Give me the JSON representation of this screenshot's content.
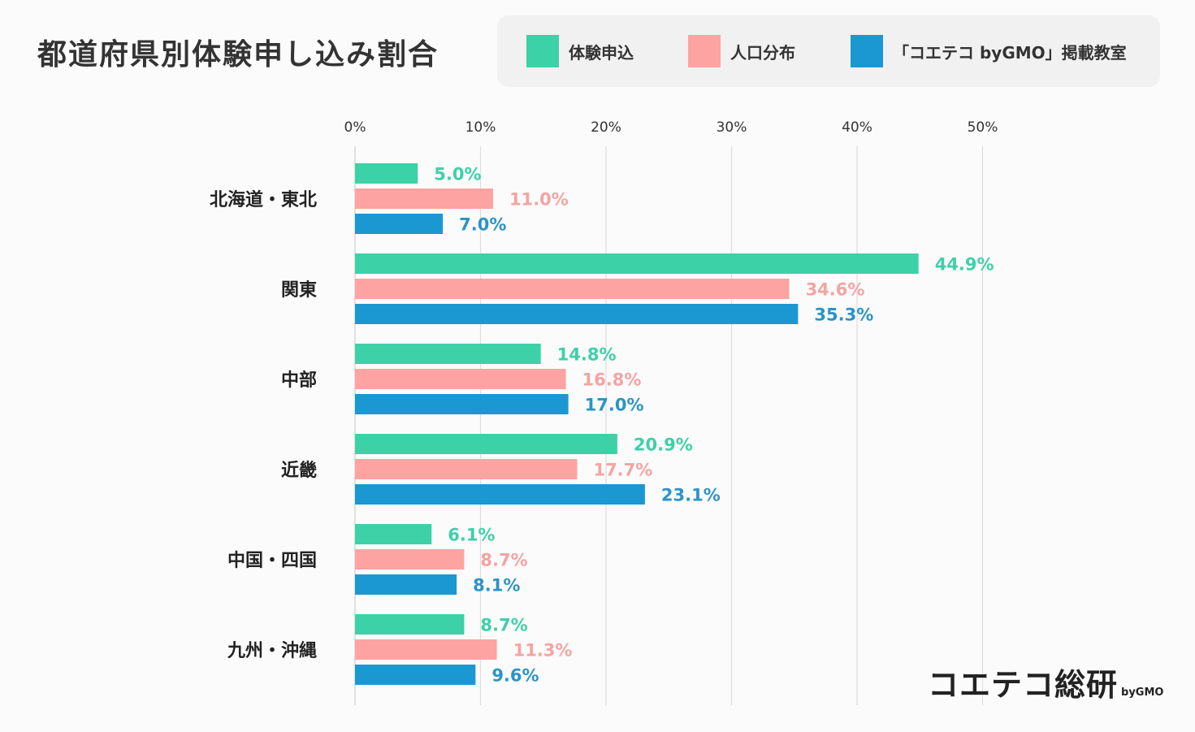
{
  "title": "都道府県別体験申し込み割合",
  "legend": [
    {
      "label": "体験申込",
      "color": "#3dd1a7"
    },
    {
      "label": "人口分布",
      "color": "#fda3a1"
    },
    {
      "label": "「コエテコ byGMO」掲載教室",
      "color": "#1b98d2"
    }
  ],
  "brand": {
    "name": "コエテコ総研",
    "sub": "byGMO"
  },
  "chart_data": {
    "type": "bar",
    "orientation": "horizontal",
    "title": "都道府県別体験申し込み割合",
    "xlim": [
      0,
      50
    ],
    "xticks": [
      0,
      10,
      20,
      30,
      40,
      50
    ],
    "tick_suffix": "%",
    "grid": true,
    "legend_position": "top-right",
    "categories": [
      "北海道・東北",
      "関東",
      "中部",
      "近畿",
      "中国・四国",
      "九州・沖縄"
    ],
    "series": [
      {
        "name": "体験申込",
        "color": "#3dd1a7",
        "label_color": "#3dd1a7",
        "values": [
          5.0,
          44.9,
          14.8,
          20.9,
          6.1,
          8.7
        ],
        "labels": [
          "5.0%",
          "44.9%",
          "14.8%",
          "20.9%",
          "6.1%",
          "8.7%"
        ]
      },
      {
        "name": "人口分布",
        "color": "#fda3a1",
        "label_color": "#f4a4a2",
        "values": [
          11.0,
          34.6,
          16.8,
          17.7,
          8.7,
          11.3
        ],
        "labels": [
          "11.0%",
          "34.6%",
          "16.8%",
          "17.7%",
          "8.7%",
          "11.3%"
        ]
      },
      {
        "name": "「コエテコ byGMO」掲載教室",
        "color": "#1b98d2",
        "label_color": "#2b94c6",
        "values": [
          7.0,
          35.3,
          17.0,
          23.1,
          8.1,
          9.6
        ],
        "labels": [
          "7.0%",
          "35.3%",
          "17.0%",
          "23.1%",
          "8.1%",
          "9.6%"
        ]
      }
    ]
  }
}
